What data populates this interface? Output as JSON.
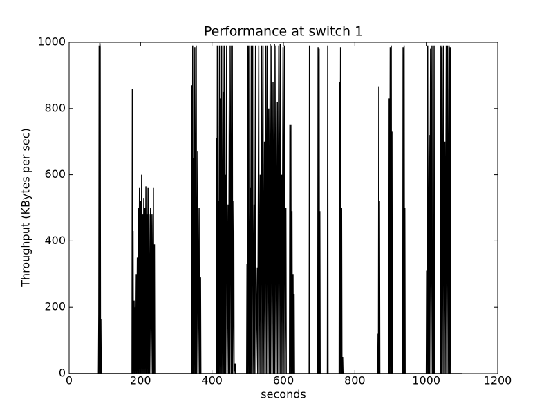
{
  "chart_data": {
    "type": "line",
    "title": "Performance at switch 1",
    "x_label": "seconds",
    "y_label": "Throughput (KBytes per sec)",
    "x": [
      0,
      82,
      83,
      84,
      85,
      86,
      87,
      88,
      89,
      90,
      176,
      177,
      178,
      179,
      180,
      182,
      183,
      185,
      186,
      188,
      189,
      191,
      192,
      194,
      195,
      197,
      198,
      200,
      201,
      203,
      204,
      206,
      207,
      209,
      210,
      212,
      213,
      215,
      216,
      218,
      219,
      221,
      222,
      224,
      225,
      228,
      229,
      232,
      233,
      236,
      237,
      239,
      240,
      343,
      344,
      345,
      346,
      347,
      349,
      350,
      352,
      353,
      356,
      357,
      360,
      361,
      364,
      365,
      368,
      369,
      412,
      413,
      414,
      415,
      416,
      418,
      419,
      421,
      422,
      424,
      425,
      427,
      428,
      431,
      432,
      434,
      435,
      437,
      438,
      441,
      442,
      445,
      446,
      449,
      450,
      453,
      454,
      457,
      458,
      461,
      462,
      465,
      466,
      497,
      498,
      499,
      500,
      501,
      503,
      504,
      507,
      508,
      510,
      511,
      514,
      515,
      518,
      519,
      522,
      523,
      527,
      528,
      531,
      532,
      535,
      536,
      539,
      540,
      543,
      544,
      547,
      548,
      551,
      552,
      555,
      556,
      559,
      560,
      563,
      564,
      567,
      568,
      571,
      572,
      575,
      576,
      579,
      580,
      583,
      584,
      587,
      588,
      591,
      592,
      595,
      596,
      599,
      600,
      603,
      604,
      607,
      608,
      617,
      618,
      619,
      621,
      622,
      624,
      625,
      627,
      628,
      630,
      631,
      672,
      673,
      674,
      696,
      697,
      698,
      700,
      701,
      702,
      703,
      723,
      724,
      725,
      756,
      757,
      758,
      760,
      761,
      763,
      764,
      766,
      767,
      864,
      865,
      866,
      867,
      868,
      869,
      870,
      895,
      896,
      897,
      899,
      900,
      902,
      903,
      904,
      905,
      934,
      935,
      936,
      938,
      939,
      940,
      941,
      1000,
      1001,
      1002,
      1004,
      1005,
      1008,
      1009,
      1012,
      1013,
      1016,
      1017,
      1020,
      1021,
      1022,
      1023,
      1040,
      1041,
      1042,
      1044,
      1045,
      1048,
      1049,
      1052,
      1053,
      1056,
      1057,
      1060,
      1061,
      1064,
      1065,
      1067,
      1068,
      1100
    ],
    "series": [
      {
        "color": "#000000",
        "values": [
          0,
          0,
          180,
          990,
          0,
          998,
          985,
          0,
          165,
          0,
          0,
          860,
          0,
          430,
          0,
          220,
          0,
          200,
          0,
          300,
          0,
          350,
          0,
          500,
          0,
          560,
          0,
          520,
          0,
          600,
          0,
          480,
          0,
          530,
          0,
          500,
          0,
          565,
          0,
          480,
          0,
          560,
          0,
          480,
          0,
          500,
          0,
          480,
          0,
          560,
          0,
          390,
          0,
          0,
          870,
          0,
          990,
          0,
          650,
          0,
          985,
          0,
          990,
          0,
          670,
          0,
          500,
          0,
          290,
          0,
          0,
          710,
          0,
          990,
          0,
          520,
          0,
          990,
          0,
          830,
          0,
          990,
          0,
          850,
          0,
          990,
          0,
          600,
          0,
          990,
          0,
          510,
          0,
          990,
          0,
          990,
          0,
          990,
          0,
          520,
          0,
          30,
          0,
          0,
          330,
          0,
          990,
          0,
          990,
          0,
          560,
          0,
          990,
          0,
          990,
          0,
          510,
          0,
          990,
          0,
          320,
          0,
          990,
          0,
          600,
          0,
          990,
          0,
          990,
          0,
          700,
          0,
          990,
          0,
          990,
          0,
          800,
          0,
          995,
          0,
          990,
          0,
          880,
          0,
          995,
          0,
          990,
          0,
          820,
          0,
          990,
          0,
          995,
          0,
          600,
          0,
          985,
          0,
          990,
          0,
          500,
          0,
          0,
          750,
          0,
          750,
          0,
          490,
          0,
          300,
          0,
          240,
          0,
          0,
          990,
          0,
          0,
          985,
          0,
          980,
          0,
          490,
          0,
          0,
          990,
          0,
          0,
          880,
          0,
          985,
          0,
          500,
          0,
          50,
          0,
          0,
          120,
          0,
          865,
          0,
          520,
          0,
          0,
          830,
          0,
          985,
          0,
          990,
          0,
          730,
          0,
          0,
          985,
          0,
          990,
          0,
          500,
          0,
          0,
          310,
          0,
          990,
          0,
          720,
          0,
          980,
          0,
          990,
          0,
          480,
          0,
          990,
          0,
          0,
          990,
          0,
          985,
          0,
          990,
          0,
          700,
          0,
          990,
          0,
          990,
          0,
          990,
          0,
          985,
          0,
          0
        ]
      }
    ],
    "xlim": [
      0,
      1200
    ],
    "xticks": [
      0,
      200,
      400,
      600,
      800,
      1000,
      1200
    ],
    "ylim": [
      0,
      1000
    ],
    "yticks": [
      0,
      200,
      400,
      600,
      800,
      1000
    ]
  }
}
